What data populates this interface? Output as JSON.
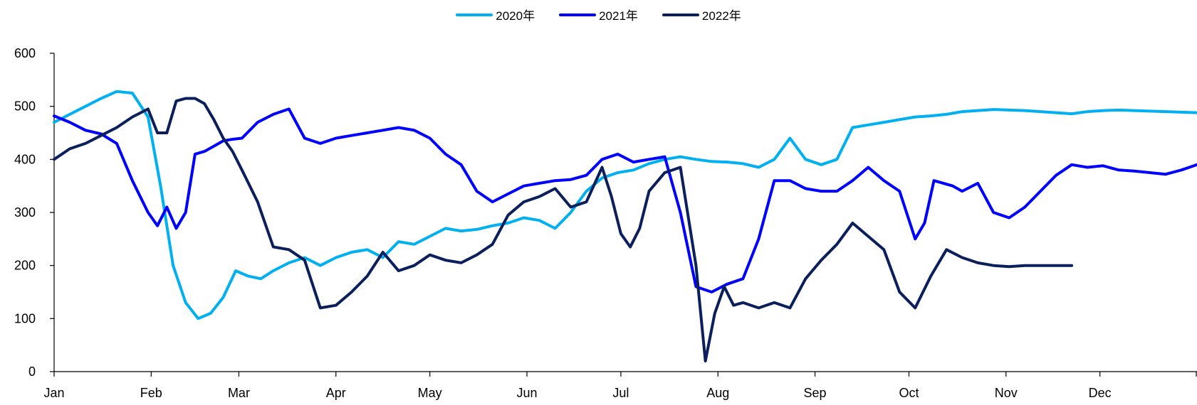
{
  "chart_data": {
    "type": "line",
    "title": "",
    "xlabel": "",
    "ylabel": "",
    "ylim": [
      0,
      600
    ],
    "yticks": [
      0,
      100,
      200,
      300,
      400,
      500,
      600
    ],
    "xlim": [
      0,
      365
    ],
    "month_labels": [
      "Jan",
      "Feb",
      "Mar",
      "Apr",
      "May",
      "Jun",
      "Jul",
      "Aug",
      "Sep",
      "Oct",
      "Nov",
      "Dec"
    ],
    "month_starts": [
      0,
      31,
      59,
      90,
      120,
      151,
      181,
      212,
      243,
      273,
      304,
      334
    ],
    "grid": false,
    "legend": "top-center",
    "series": [
      {
        "name": "2020年",
        "color": "#00b0f0",
        "x": [
          0,
          5,
          10,
          15,
          20,
          25,
          30,
          34,
          38,
          42,
          46,
          50,
          54,
          58,
          62,
          66,
          70,
          75,
          80,
          85,
          90,
          95,
          100,
          105,
          110,
          115,
          120,
          125,
          130,
          135,
          140,
          145,
          150,
          155,
          160,
          165,
          170,
          175,
          180,
          185,
          190,
          195,
          200,
          205,
          210,
          215,
          220,
          225,
          230,
          235,
          240,
          245,
          250,
          255,
          260,
          265,
          270,
          275,
          280,
          285,
          290,
          295,
          300,
          305,
          310,
          315,
          320,
          325,
          330,
          335,
          340,
          345,
          350,
          355,
          360,
          365
        ],
        "values": [
          470,
          485,
          500,
          515,
          528,
          525,
          480,
          350,
          200,
          130,
          100,
          110,
          140,
          190,
          180,
          175,
          190,
          205,
          215,
          200,
          215,
          225,
          230,
          215,
          245,
          240,
          255,
          270,
          265,
          268,
          275,
          280,
          290,
          285,
          270,
          300,
          340,
          365,
          375,
          380,
          392,
          400,
          405,
          400,
          396,
          395,
          392,
          385,
          400,
          440,
          400,
          390,
          400,
          460,
          465,
          470,
          475,
          480,
          482,
          485,
          490,
          492,
          494,
          493,
          492,
          490,
          488,
          486,
          490,
          492,
          493,
          492,
          491,
          490,
          489,
          488
        ]
      },
      {
        "name": "2021年",
        "color": "#0000ff",
        "x": [
          0,
          5,
          10,
          15,
          20,
          25,
          30,
          33,
          36,
          39,
          42,
          45,
          48,
          51,
          54,
          57,
          60,
          65,
          70,
          75,
          80,
          85,
          90,
          95,
          100,
          105,
          110,
          115,
          120,
          125,
          130,
          135,
          140,
          145,
          150,
          155,
          160,
          165,
          170,
          175,
          180,
          185,
          190,
          195,
          200,
          205,
          210,
          215,
          220,
          225,
          230,
          235,
          240,
          245,
          250,
          255,
          260,
          265,
          270,
          275,
          278,
          281,
          284,
          287,
          290,
          295,
          300,
          305,
          310,
          315,
          320,
          325,
          330,
          335,
          340,
          345,
          350,
          355,
          360,
          365
        ],
        "values": [
          482,
          470,
          455,
          448,
          430,
          360,
          300,
          275,
          310,
          270,
          300,
          410,
          415,
          425,
          435,
          438,
          440,
          470,
          485,
          495,
          440,
          430,
          440,
          445,
          450,
          455,
          460,
          455,
          440,
          410,
          390,
          340,
          320,
          335,
          350,
          355,
          360,
          362,
          370,
          400,
          410,
          395,
          400,
          405,
          300,
          160,
          150,
          165,
          175,
          250,
          360,
          360,
          345,
          340,
          340,
          360,
          385,
          360,
          340,
          250,
          280,
          360,
          355,
          350,
          340,
          355,
          300,
          290,
          310,
          340,
          370,
          390,
          385,
          388,
          380,
          378,
          375,
          372,
          380,
          390
        ]
      },
      {
        "name": "2022年",
        "color": "#0a1f5c",
        "x": [
          0,
          5,
          10,
          15,
          20,
          25,
          30,
          33,
          36,
          39,
          42,
          45,
          48,
          51,
          54,
          57,
          60,
          65,
          70,
          75,
          80,
          85,
          90,
          95,
          100,
          105,
          110,
          115,
          120,
          125,
          130,
          135,
          140,
          145,
          150,
          155,
          160,
          165,
          170,
          175,
          178,
          181,
          184,
          187,
          190,
          195,
          200,
          205,
          208,
          211,
          214,
          217,
          220,
          225,
          230,
          235,
          240,
          245,
          250,
          255,
          260,
          265,
          270,
          275,
          280,
          285,
          290,
          295,
          300,
          305,
          310,
          315,
          320,
          325
        ],
        "values": [
          400,
          420,
          430,
          445,
          460,
          480,
          495,
          450,
          450,
          510,
          515,
          515,
          505,
          475,
          440,
          415,
          380,
          320,
          235,
          230,
          210,
          120,
          125,
          150,
          180,
          225,
          190,
          200,
          220,
          210,
          205,
          220,
          240,
          295,
          320,
          330,
          345,
          310,
          320,
          385,
          330,
          260,
          235,
          270,
          340,
          375,
          385,
          200,
          20,
          110,
          160,
          125,
          130,
          120,
          130,
          120,
          175,
          210,
          240,
          280,
          255,
          230,
          150,
          120,
          180,
          230,
          215,
          205,
          200,
          198,
          200,
          200,
          200,
          200
        ]
      }
    ]
  }
}
